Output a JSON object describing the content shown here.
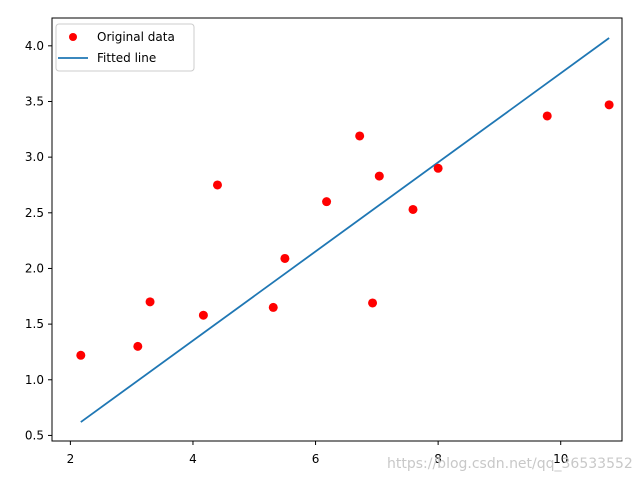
{
  "colors": {
    "points": "#ff0000",
    "line": "#1f77b4",
    "axes": "#000000",
    "legend_border": "#cccccc"
  },
  "watermark": "https://blog.csdn.net/qq_36533552",
  "chart_data": {
    "type": "scatter",
    "title": "",
    "xlabel": "",
    "ylabel": "",
    "xlim": [
      1.7,
      11.0
    ],
    "ylim": [
      0.45,
      4.25
    ],
    "x_ticks": [
      2,
      4,
      6,
      8,
      10
    ],
    "y_ticks": [
      0.5,
      1.0,
      1.5,
      2.0,
      2.5,
      3.0,
      3.5,
      4.0
    ],
    "x_tick_labels": [
      "2",
      "4",
      "6",
      "8",
      "10"
    ],
    "y_tick_labels": [
      "0.5",
      "1.0",
      "1.5",
      "2.0",
      "2.5",
      "3.0",
      "3.5",
      "4.0"
    ],
    "grid": false,
    "legend": {
      "position": "top-left",
      "entries": [
        {
          "label": "Original data",
          "marker": "circle"
        },
        {
          "label": "Fitted line",
          "marker": "line"
        }
      ]
    },
    "series": [
      {
        "name": "Original data",
        "kind": "scatter",
        "points": [
          {
            "x": 2.17,
            "y": 1.22
          },
          {
            "x": 3.1,
            "y": 1.3
          },
          {
            "x": 3.3,
            "y": 1.7
          },
          {
            "x": 4.17,
            "y": 1.58
          },
          {
            "x": 4.4,
            "y": 2.75
          },
          {
            "x": 5.31,
            "y": 1.65
          },
          {
            "x": 5.5,
            "y": 2.09
          },
          {
            "x": 6.18,
            "y": 2.6
          },
          {
            "x": 6.72,
            "y": 3.19
          },
          {
            "x": 6.93,
            "y": 1.69
          },
          {
            "x": 7.04,
            "y": 2.83
          },
          {
            "x": 7.59,
            "y": 2.53
          },
          {
            "x": 8.0,
            "y": 2.9
          },
          {
            "x": 9.78,
            "y": 3.37
          },
          {
            "x": 10.79,
            "y": 3.47
          }
        ]
      },
      {
        "name": "Fitted line",
        "kind": "line",
        "points": [
          {
            "x": 2.17,
            "y": 0.62
          },
          {
            "x": 10.79,
            "y": 4.07
          }
        ]
      }
    ]
  }
}
